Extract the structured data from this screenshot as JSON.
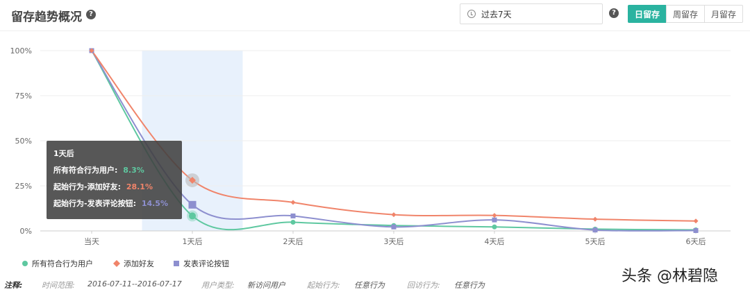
{
  "header": {
    "title": "留存趋势概况",
    "help_glyph": "?",
    "date_range": "过去7天",
    "tabs": [
      {
        "label": "日留存",
        "active": true
      },
      {
        "label": "周留存",
        "active": false
      },
      {
        "label": "月留存",
        "active": false
      }
    ]
  },
  "chart_data": {
    "type": "line",
    "categories": [
      "当天",
      "1天后",
      "2天后",
      "3天后",
      "4天后",
      "5天后",
      "6天后"
    ],
    "ylim": [
      0,
      100
    ],
    "yticks": [
      "0%",
      "25%",
      "50%",
      "75%",
      "100%"
    ],
    "grid": true,
    "legend_position": "bottom-left",
    "highlight_category": "1天后",
    "series": [
      {
        "name": "所有符合行为用户",
        "color": "#5ec8a0",
        "marker": "circle",
        "values": [
          100,
          8.3,
          4.8,
          3.0,
          2.2,
          1.0,
          0.6
        ]
      },
      {
        "name": "添加好友",
        "color": "#f0846a",
        "marker": "diamond",
        "values": [
          100,
          28.1,
          15.8,
          9.0,
          8.6,
          6.5,
          5.5
        ]
      },
      {
        "name": "发表评论按钮",
        "color": "#8d8fcf",
        "marker": "square",
        "values": [
          100,
          14.5,
          8.3,
          2.2,
          6.1,
          0.5,
          0.2
        ]
      }
    ]
  },
  "tooltip": {
    "title": "1天后",
    "rows": [
      {
        "label": "所有符合行为用户:",
        "value": "8.3%",
        "color": "#5ec8a0"
      },
      {
        "label": "起始行为-添加好友:",
        "value": "28.1%",
        "color": "#f0846a"
      },
      {
        "label": "起始行为-发表评论按钮:",
        "value": "14.5%",
        "color": "#8d8fcf"
      }
    ]
  },
  "footer": {
    "note_label": "注释:",
    "time_label": "时间范围:",
    "time_value": "2016-07-11--2016-07-17",
    "user_type_label": "用户类型:",
    "user_type_value": "新访问用户",
    "start_label": "起始行为:",
    "start_value": "任意行为",
    "return_label": "回访行为:",
    "return_value": "任意行为"
  },
  "watermark": "头条 @林碧隐"
}
